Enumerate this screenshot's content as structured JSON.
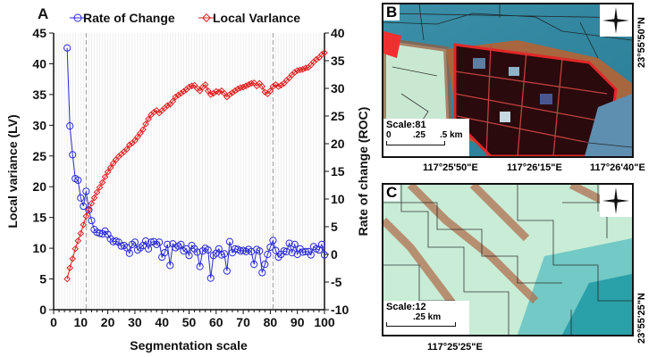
{
  "chart_data": {
    "type": "line",
    "panel_label": "A",
    "xlabel": "Segmentation scale",
    "ylabel_left": "Local variance (LV)",
    "ylabel_right": "Rate of change (ROC)",
    "xlim": [
      0,
      100
    ],
    "ylim_left": [
      0,
      45
    ],
    "ylim_right": [
      -10,
      40
    ],
    "xticks": [
      0,
      10,
      20,
      30,
      40,
      50,
      60,
      70,
      80,
      90,
      100
    ],
    "yticks_left": [
      0,
      5,
      10,
      15,
      20,
      25,
      30,
      35,
      40,
      45
    ],
    "yticks_right": [
      -10,
      -5,
      0,
      5,
      10,
      15,
      20,
      25,
      30,
      35,
      40
    ],
    "grid": "vertical light lines at every scale unit",
    "legend_placement": "top",
    "reference_lines_x": [
      12,
      81
    ],
    "x": [
      5,
      6,
      7,
      8,
      9,
      10,
      11,
      12,
      13,
      14,
      15,
      16,
      17,
      18,
      19,
      20,
      21,
      22,
      23,
      24,
      25,
      26,
      27,
      28,
      29,
      30,
      31,
      32,
      33,
      34,
      35,
      36,
      37,
      38,
      39,
      40,
      41,
      42,
      43,
      44,
      45,
      46,
      47,
      48,
      49,
      50,
      51,
      52,
      53,
      54,
      55,
      56,
      57,
      58,
      59,
      60,
      61,
      62,
      63,
      64,
      65,
      66,
      67,
      68,
      69,
      70,
      71,
      72,
      73,
      74,
      75,
      76,
      77,
      78,
      79,
      80,
      81,
      82,
      83,
      84,
      85,
      86,
      87,
      88,
      89,
      90,
      91,
      92,
      93,
      94,
      95,
      96,
      97,
      98,
      99,
      100
    ],
    "series": [
      {
        "name": "Rate of Change",
        "axis": "right",
        "color": "#2b2bd6",
        "marker": "circle",
        "values": [
          37.3,
          23.2,
          18,
          13.7,
          13.4,
          10.2,
          8.7,
          11.4,
          8,
          6.1,
          4.5,
          4,
          3.8,
          3.7,
          4.2,
          3.6,
          2.8,
          2.3,
          2.4,
          2.2,
          1.5,
          1.6,
          1.2,
          0.2,
          1.8,
          2.2,
          0.8,
          1.2,
          1.6,
          2.4,
          1,
          2.2,
          2.3,
          1.8,
          2.2,
          -0.5,
          0.3,
          1.8,
          -2,
          1.9,
          1.2,
          1.5,
          1.8,
          0.6,
          1,
          -0.2,
          1.6,
          1,
          0.4,
          -2.2,
          0.6,
          1.1,
          0.8,
          -4.3,
          -0.2,
          0.2,
          1,
          -0.1,
          0.1,
          -3,
          2.3,
          0.3,
          1,
          0.9,
          0.6,
          0.7,
          0.5,
          0.9,
          0.5,
          -1.8,
          0.9,
          0.6,
          -3.3,
          -1.8,
          0,
          1.3,
          2.5,
          0.7,
          -0.5,
          0,
          0.6,
          0.5,
          2,
          0.3,
          1.8,
          0,
          1,
          0.4,
          0.5,
          0.5,
          -0.1,
          1.4,
          1,
          0.8,
          1.8,
          -0.1
        ]
      },
      {
        "name": "Local Varlance",
        "axis": "left",
        "color": "#e02020",
        "marker": "diamond",
        "values": [
          5,
          6.8,
          8.3,
          9.9,
          11.2,
          12.4,
          13.8,
          15.2,
          16.3,
          17.3,
          18.2,
          19.1,
          19.9,
          20.7,
          21.6,
          22.4,
          23.1,
          23.8,
          24.4,
          24.9,
          25.3,
          25.7,
          26.1,
          26.8,
          27.1,
          27.5,
          28.1,
          28.7,
          29.3,
          30.2,
          31.0,
          31.7,
          32.1,
          32.4,
          32.0,
          32.4,
          32.8,
          33.2,
          33.4,
          33.9,
          34.6,
          34.9,
          35.2,
          35.5,
          35.8,
          36.2,
          36.4,
          36.5,
          36.0,
          35.6,
          36.2,
          36.6,
          35.6,
          35.0,
          35.2,
          35.5,
          35.4,
          35.6,
          35.2,
          34.6,
          35.0,
          35.3,
          35.6,
          35.9,
          36.1,
          36.2,
          36.4,
          36.6,
          36.8,
          36.9,
          36.4,
          36.8,
          36.3,
          35.4,
          35.1,
          35.6,
          36.3,
          36.6,
          36.3,
          36.5,
          36.8,
          37.3,
          37.7,
          38.2,
          38.6,
          38.9,
          39.0,
          39.1,
          39.3,
          39.4,
          39.8,
          40.3,
          40.7,
          41.0,
          41.5,
          41.8
        ]
      }
    ]
  },
  "maps": {
    "b": {
      "label": "B",
      "scale_label": "Scale:81",
      "bar_ticks": [
        "0",
        ".25",
        ".5 km"
      ],
      "lon_ticks": [
        "117°25'50\"E",
        "117°26'15\"E",
        "117°26'40\"E"
      ],
      "lat_tick": "23°55'50\"N"
    },
    "c": {
      "label": "C",
      "scale_label": "Scale:12",
      "bar_ticks": [
        ".25 km"
      ],
      "lon_ticks": [
        "117°25'25\"E"
      ],
      "lat_tick": "23°55'25\"N"
    },
    "compass": {
      "n": "N",
      "s": "S",
      "e": "E",
      "w": "W"
    }
  }
}
